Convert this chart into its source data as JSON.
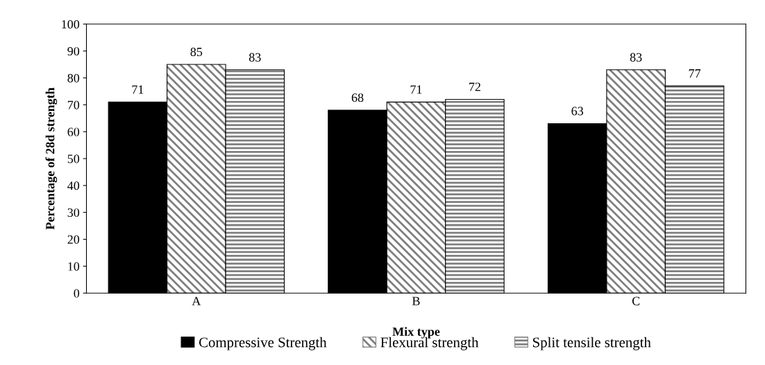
{
  "chart_data": {
    "type": "bar",
    "xlabel": "Mix type",
    "ylabel": "Percentage of 28d strength",
    "categories": [
      "A",
      "B",
      "C"
    ],
    "series": [
      {
        "name": "Compressive Strength",
        "color": "#000000",
        "values": [
          71,
          68,
          63
        ]
      },
      {
        "name": "Flexural strength",
        "color": "#7f7f7f",
        "values": [
          85,
          71,
          83
        ]
      },
      {
        "name": "Split tensile strength",
        "color": "#7f7f7f",
        "values": [
          83,
          72,
          77
        ]
      }
    ],
    "ylim": [
      0,
      100
    ],
    "yticks": [
      0,
      10,
      20,
      30,
      40,
      50,
      60,
      70,
      80,
      90,
      100
    ],
    "data_labels": true,
    "grid": false,
    "legend": "bottom"
  }
}
